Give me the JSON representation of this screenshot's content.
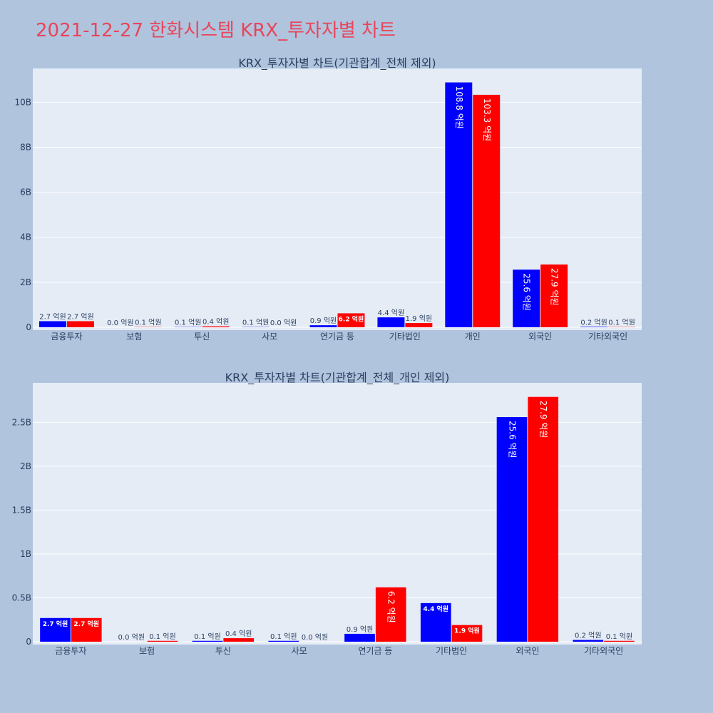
{
  "page": {
    "title": "2021-12-27 한화시스템 KRX_투자자별 차트"
  },
  "colors": {
    "background": "#b0c4de",
    "plot_bg": "#e5ecf6",
    "series_1": "#0000ff",
    "series_2": "#ff0000",
    "title": "#e8455a",
    "text": "#2a3f5f"
  },
  "chart_data": [
    {
      "type": "bar",
      "title": "KRX_투자자별 차트(기관합계_전체 제외)",
      "categories": [
        "금융투자",
        "보험",
        "투신",
        "사모",
        "연기금 등",
        "기타법인",
        "개인",
        "외국인",
        "기타외국인"
      ],
      "series": [
        {
          "values": [
            270000000,
            0,
            10000000,
            10000000,
            90000000,
            440000000,
            10880000000,
            2560000000,
            20000000
          ],
          "labels": [
            "2.7 억원",
            "0.0 억원",
            "0.1 억원",
            "0.1 억원",
            "0.9 억원",
            "4.4 억원",
            "108.8 억원",
            "25.6 억원",
            "0.2 억원"
          ]
        },
        {
          "values": [
            270000000,
            10000000,
            40000000,
            0,
            620000000,
            190000000,
            10330000000,
            2790000000,
            10000000
          ],
          "labels": [
            "2.7 억원",
            "0.1 억원",
            "0.4 억원",
            "0.0 억원",
            "6.2 억원",
            "1.9 억원",
            "103.3 억원",
            "27.9 억원",
            "0.1 억원"
          ]
        }
      ],
      "yticks": [
        0,
        2000000000,
        4000000000,
        6000000000,
        8000000000,
        10000000000
      ],
      "ytick_labels": [
        "0",
        "2B",
        "4B",
        "6B",
        "8B",
        "10B"
      ],
      "ylim": [
        0,
        11500000000
      ],
      "grid": true,
      "legend": "none"
    },
    {
      "type": "bar",
      "title": "KRX_투자자별 차트(기관합계_전체_개인 제외)",
      "categories": [
        "금융투자",
        "보험",
        "투신",
        "사모",
        "연기금 등",
        "기타법인",
        "외국인",
        "기타외국인"
      ],
      "series": [
        {
          "values": [
            270000000,
            0,
            10000000,
            10000000,
            90000000,
            440000000,
            2560000000,
            20000000
          ],
          "labels": [
            "2.7 억원",
            "0.0 억원",
            "0.1 억원",
            "0.1 억원",
            "0.9 억원",
            "4.4 억원",
            "25.6 억원",
            "0.2 억원"
          ]
        },
        {
          "values": [
            270000000,
            10000000,
            40000000,
            0,
            620000000,
            190000000,
            2790000000,
            10000000
          ],
          "labels": [
            "2.7 억원",
            "0.1 억원",
            "0.4 억원",
            "0.0 억원",
            "6.2 억원",
            "1.9 억원",
            "27.9 억원",
            "0.1 억원"
          ]
        }
      ],
      "yticks": [
        0,
        500000000,
        1000000000,
        1500000000,
        2000000000,
        2500000000
      ],
      "ytick_labels": [
        "0",
        "0.5B",
        "1B",
        "1.5B",
        "2B",
        "2.5B"
      ],
      "ylim": [
        0,
        2950000000
      ],
      "grid": true,
      "legend": "none"
    }
  ]
}
